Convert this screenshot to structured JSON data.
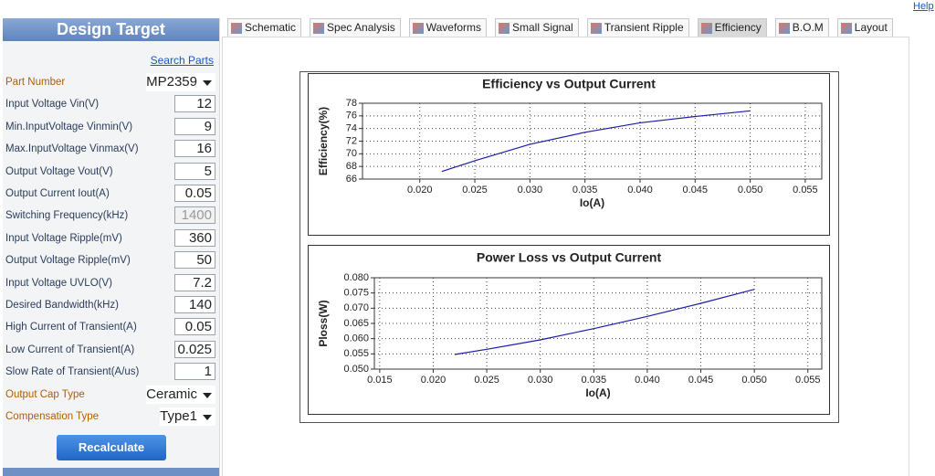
{
  "help": "Help",
  "sidebar": {
    "title": "Design Target",
    "search": "Search Parts",
    "button": "Recalculate",
    "fields": [
      {
        "label": "Part Number",
        "value": "MP2359",
        "kind": "select",
        "accent": true
      },
      {
        "label": "Input Voltage Vin(V)",
        "value": "12",
        "kind": "input"
      },
      {
        "label": "Min.InputVoltage Vinmin(V)",
        "value": "9",
        "kind": "input"
      },
      {
        "label": "Max.InputVoltage Vinmax(V)",
        "value": "16",
        "kind": "input"
      },
      {
        "label": "Output Voltage Vout(V)",
        "value": "5",
        "kind": "input"
      },
      {
        "label": "Output Current Iout(A)",
        "value": "0.05",
        "kind": "input"
      },
      {
        "label": "Switching Frequency(kHz)",
        "value": "1400",
        "kind": "disabled"
      },
      {
        "label": "Input Voltage Ripple(mV)",
        "value": "360",
        "kind": "input"
      },
      {
        "label": "Output Voltage Ripple(mV)",
        "value": "50",
        "kind": "input"
      },
      {
        "label": "Input Voltage UVLO(V)",
        "value": "7.2",
        "kind": "input"
      },
      {
        "label": "Desired Bandwidth(kHz)",
        "value": "140",
        "kind": "input"
      },
      {
        "label": "High Current of Transient(A)",
        "value": "0.05",
        "kind": "input"
      },
      {
        "label": "Low Current of Transient(A)",
        "value": "0.025",
        "kind": "input"
      },
      {
        "label": "Slow Rate of Transient(A/us)",
        "value": "1",
        "kind": "input"
      },
      {
        "label": "Output Cap Type",
        "value": "Ceramic",
        "kind": "select",
        "accent": true
      },
      {
        "label": "Compensation Type",
        "value": "Type1",
        "kind": "select",
        "accent": true
      }
    ]
  },
  "tabs": {
    "items": [
      "Schematic",
      "Spec Analysis",
      "Waveforms",
      "Small Signal",
      "Transient Ripple",
      "Efficiency",
      "B.O.M",
      "Layout"
    ],
    "active": 5
  },
  "chart_data": [
    {
      "type": "line",
      "title": "Efficiency vs Output Current",
      "x_label": "Io(A)",
      "y_label": "Efficiency(%)",
      "x": [
        0.022,
        0.025,
        0.03,
        0.035,
        0.04,
        0.045,
        0.05
      ],
      "series": [
        {
          "name": "Efficiency",
          "color": "#1c1ca8",
          "values": [
            67.2,
            68.9,
            71.5,
            73.4,
            74.9,
            75.9,
            76.8
          ]
        }
      ],
      "xlim": [
        0.0148,
        0.0565
      ],
      "ylim": [
        66,
        78
      ],
      "xticks": [
        {
          "value": 0.02,
          "label": "0.020"
        },
        0.025,
        {
          "value": 0.03,
          "label": "0.030"
        },
        0.035,
        {
          "value": 0.04,
          "label": "0.040"
        },
        0.045,
        {
          "value": 0.05,
          "label": "0.050"
        },
        0.055
      ],
      "yticks": [
        66,
        68,
        70,
        72,
        74,
        76,
        78
      ],
      "grid": true
    },
    {
      "type": "line",
      "title": "Power Loss vs Output Current",
      "x_label": "Io(A)",
      "y_label": "Ploss(W)",
      "x": [
        0.022,
        0.025,
        0.03,
        0.035,
        0.04,
        0.045,
        0.05
      ],
      "series": [
        {
          "name": "Ploss",
          "color": "#1c1ca8",
          "values": [
            0.0548,
            0.0565,
            0.0596,
            0.0633,
            0.0673,
            0.0716,
            0.0762
          ]
        }
      ],
      "xlim": [
        0.0145,
        0.0563
      ],
      "ylim": [
        0.05,
        0.08
      ],
      "xticks": [
        0.015,
        {
          "value": 0.02,
          "label": "0.020"
        },
        0.025,
        {
          "value": 0.03,
          "label": "0.030"
        },
        0.035,
        {
          "value": 0.04,
          "label": "0.040"
        },
        0.045,
        {
          "value": 0.05,
          "label": "0.050"
        },
        0.055
      ],
      "yticks": [
        {
          "value": 0.05,
          "label": "0.050"
        },
        0.055,
        {
          "value": 0.06,
          "label": "0.060"
        },
        0.065,
        {
          "value": 0.07,
          "label": "0.070"
        },
        0.075,
        {
          "value": 0.08,
          "label": "0.080"
        }
      ],
      "grid": true
    }
  ]
}
